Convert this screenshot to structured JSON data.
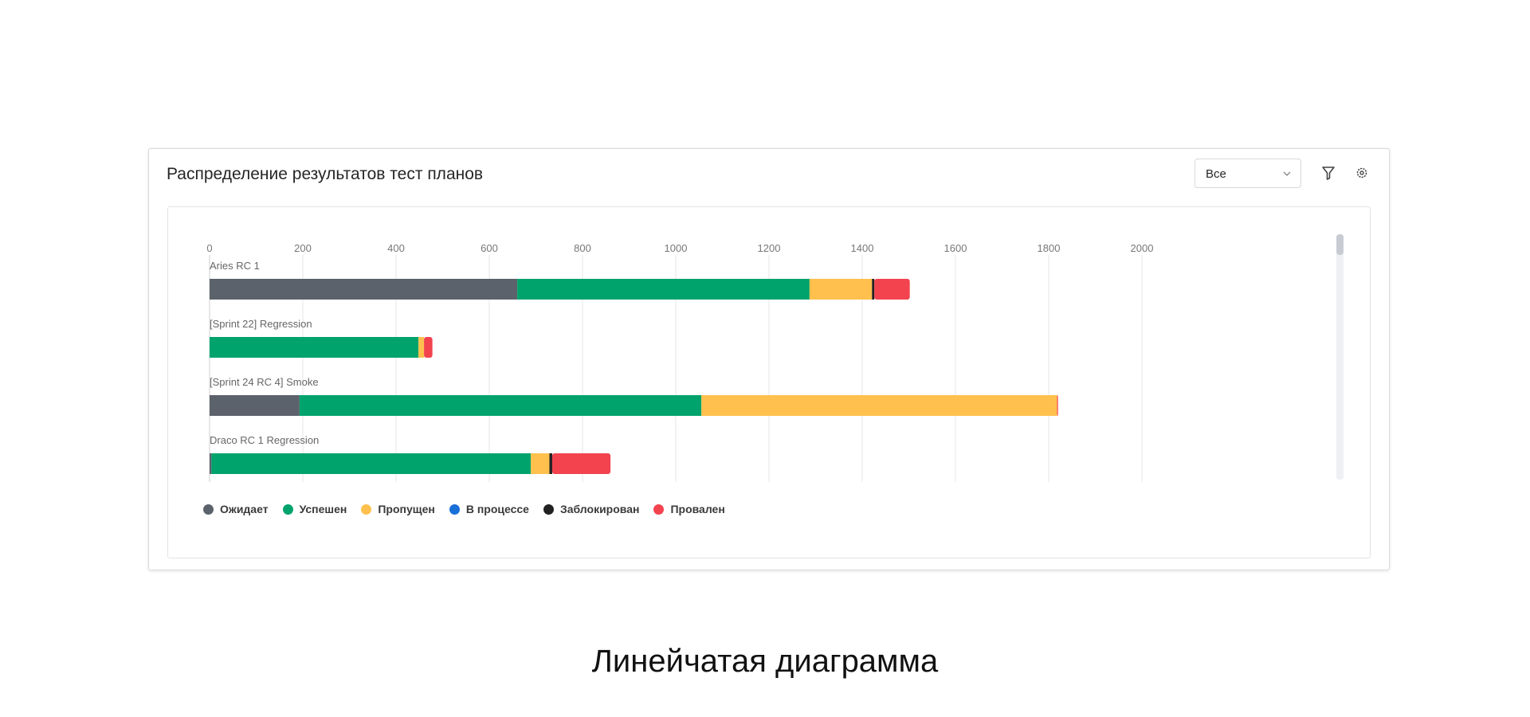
{
  "widget": {
    "title": "Распределение результатов тест планов",
    "filter_select": {
      "value": "Все"
    }
  },
  "caption": "Линейчатая диаграмма",
  "chart_data": {
    "type": "bar",
    "orientation": "horizontal",
    "stacked": true,
    "x_ticks": [
      "0",
      "200",
      "400",
      "600",
      "800",
      "1000",
      "1200",
      "1400",
      "1600",
      "1800",
      "2000"
    ],
    "xlim": [
      0,
      2000
    ],
    "grid": true,
    "legend_position": "bottom-left",
    "categories": [
      "Aries RC 1",
      "[Sprint 22] Regression",
      "[Sprint 24 RC 4] Smoke",
      "Draco RC 1 Regression"
    ],
    "series": [
      {
        "name": "Ожидает",
        "color": "#5c626b",
        "values": [
          660,
          0,
          193,
          4
        ]
      },
      {
        "name": "Успешен",
        "color": "#00a36c",
        "values": [
          627,
          448,
          862,
          685
        ]
      },
      {
        "name": "Пропущен",
        "color": "#ffc04d",
        "values": [
          134,
          12,
          763,
          40
        ]
      },
      {
        "name": "В процессе",
        "color": "#1a6fd8",
        "values": [
          0,
          0,
          0,
          0
        ]
      },
      {
        "name": "Заблокирован",
        "color": "#222222",
        "values": [
          5,
          0,
          0,
          6
        ]
      },
      {
        "name": "Провален",
        "color": "#f2434f",
        "values": [
          76,
          18,
          2,
          125
        ]
      }
    ]
  }
}
